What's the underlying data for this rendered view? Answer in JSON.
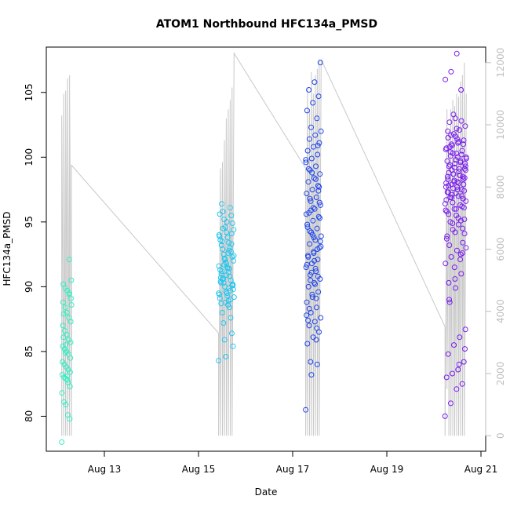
{
  "chart_data": {
    "type": "scatter",
    "title": "ATOM1 Northbound HFC134a_PMSD",
    "xlabel": "Date",
    "ylabel": "HFC134a_PMSD",
    "x_ticks": [
      "Aug 13",
      "Aug 15",
      "Aug 17",
      "Aug 19",
      "Aug 21"
    ],
    "x_range": [
      "2019-08-11T19:00",
      "2019-08-21T06:00"
    ],
    "y_ticks": [
      80,
      85,
      90,
      95,
      100,
      105
    ],
    "ylim": [
      77.3,
      108.5
    ],
    "y2_ticks": [
      0,
      2000,
      4000,
      6000,
      8000,
      10000,
      12000
    ],
    "y2lim": [
      -500,
      12500
    ],
    "grid": false,
    "colors": {
      "c1": "#2ff0c4",
      "c2": "#22c7f0",
      "c3": "#1f45ee",
      "c4": "#7a1cf0",
      "secondary_line": "#c8c8c8"
    },
    "scatter_groups": [
      {
        "start": "2019-08-12T03:00",
        "end": "2019-08-12T08:00",
        "color": "c1",
        "y": [
          78.0,
          79.8,
          80.1,
          80.9,
          81.1,
          81.8,
          82.3,
          82.6,
          82.9,
          83.0,
          83.2,
          83.4,
          83.6,
          83.8,
          84.0,
          84.2,
          84.5,
          84.8,
          85.0,
          85.2,
          85.4,
          85.7,
          85.9,
          86.3,
          86.6,
          87.0,
          87.3,
          87.6,
          88.0,
          88.4,
          88.8,
          89.1,
          89.4,
          89.7,
          89.9,
          90.2,
          90.5,
          92.1,
          83.1,
          84.9,
          86.1,
          88.6,
          89.5,
          82.8,
          85.5,
          87.9
        ]
      },
      {
        "start": "2019-08-15T12:00",
        "end": "2019-08-15T20:00",
        "color": "c2",
        "y": [
          84.3,
          84.6,
          85.4,
          85.9,
          86.4,
          87.2,
          87.6,
          88.0,
          88.4,
          88.7,
          88.9,
          89.1,
          89.3,
          89.5,
          89.6,
          89.8,
          90.0,
          90.1,
          90.3,
          90.5,
          90.6,
          90.8,
          91.0,
          91.1,
          91.3,
          91.5,
          91.6,
          91.8,
          92.0,
          92.1,
          92.3,
          92.5,
          92.7,
          92.9,
          93.0,
          93.2,
          93.4,
          93.6,
          93.8,
          94.0,
          94.2,
          94.4,
          94.6,
          94.9,
          95.2,
          95.5,
          95.8,
          96.1,
          96.4,
          89.9,
          90.4,
          91.4,
          89.4,
          90.9,
          92.4,
          88.8,
          90.2,
          91.7,
          93.3,
          94.5,
          89.7,
          91.2,
          92.8,
          90.7,
          88.6,
          93.9,
          95.0,
          89.2,
          91.9,
          90.1,
          92.2,
          94.1,
          90.6,
          89.0,
          93.5,
          91.4,
          90.3,
          92.6,
          95.6,
          89.5
        ]
      },
      {
        "start": "2019-08-17T09:00",
        "end": "2019-08-17T17:00",
        "color": "c3",
        "y": [
          80.5,
          83.2,
          84.0,
          85.6,
          86.1,
          86.5,
          87.0,
          87.3,
          87.6,
          88.0,
          88.4,
          88.8,
          89.2,
          89.6,
          90.0,
          90.3,
          90.6,
          90.9,
          91.2,
          91.5,
          91.8,
          92.1,
          92.4,
          92.7,
          93.0,
          93.3,
          93.6,
          93.9,
          94.2,
          94.5,
          94.8,
          95.1,
          95.4,
          95.7,
          96.0,
          96.3,
          96.6,
          96.9,
          97.2,
          97.5,
          97.8,
          98.1,
          98.4,
          98.7,
          99.0,
          99.3,
          99.6,
          99.9,
          100.2,
          100.5,
          100.8,
          101.1,
          101.4,
          101.7,
          102.0,
          102.3,
          103.0,
          103.6,
          104.2,
          104.7,
          105.2,
          105.8,
          107.3,
          84.2,
          85.9,
          87.8,
          89.4,
          90.8,
          92.3,
          93.8,
          95.3,
          96.8,
          98.3,
          99.8,
          91.1,
          92.9,
          94.6,
          96.1,
          97.7,
          88.3,
          90.2,
          93.1,
          95.9,
          86.8,
          91.7,
          94.0,
          97.4,
          99.1,
          92.0,
          93.5,
          90.5,
          89.1,
          95.6,
          98.8,
          100.9,
          87.4,
          92.6,
          96.5,
          94.3,
          91.4
        ]
      },
      {
        "start": "2019-08-20T09:00",
        "end": "2019-08-20T20:00",
        "color": "c4",
        "y": [
          80.0,
          81.0,
          82.1,
          82.5,
          83.0,
          83.3,
          83.6,
          84.2,
          84.8,
          85.5,
          86.1,
          86.7,
          88.8,
          89.9,
          91.0,
          91.8,
          92.3,
          92.8,
          93.4,
          93.9,
          94.4,
          94.8,
          95.2,
          95.6,
          96.0,
          96.3,
          96.6,
          96.9,
          97.2,
          97.5,
          97.7,
          97.9,
          98.1,
          98.3,
          98.5,
          98.7,
          98.9,
          99.1,
          99.3,
          99.5,
          99.7,
          99.9,
          100.1,
          100.3,
          100.5,
          100.7,
          100.9,
          101.1,
          101.3,
          101.5,
          101.8,
          102.1,
          102.4,
          102.7,
          103.0,
          105.2,
          106.0,
          106.6,
          108.0,
          94.5,
          95.8,
          96.5,
          97.0,
          97.4,
          97.8,
          98.2,
          98.6,
          99.0,
          99.4,
          99.8,
          100.2,
          100.6,
          101.0,
          101.4,
          96.8,
          97.3,
          97.6,
          98.0,
          98.4,
          98.8,
          99.2,
          99.6,
          100.0,
          100.4,
          95.5,
          96.2,
          96.7,
          97.1,
          97.5,
          97.9,
          98.3,
          98.7,
          99.1,
          99.5,
          93.2,
          94.2,
          95.1,
          96.4,
          101.7,
          102.2,
          92.6,
          93.7,
          94.9,
          95.3,
          96.1,
          97.3,
          98.1,
          98.6,
          99.3,
          100.8,
          101.6,
          102.8,
          95.9,
          96.9,
          97.7,
          98.5,
          99.7,
          100.3,
          101.2,
          94.1,
          90.3,
          91.5,
          92.1,
          93.0,
          95.0,
          96.0,
          97.0,
          98.0,
          99.0,
          100.0,
          101.0,
          102.0,
          103.3,
          84.0,
          85.2,
          89.0,
          90.6,
          92.5
        ]
      }
    ],
    "secondary_line": {
      "axis": "right",
      "points": [
        [
          "2019-08-12T03:00",
          0
        ],
        [
          "2019-08-12T03:00",
          10300
        ],
        [
          "2019-08-12T04:00",
          0
        ],
        [
          "2019-08-12T04:00",
          11000
        ],
        [
          "2019-08-12T05:00",
          0
        ],
        [
          "2019-08-12T05:00",
          11100
        ],
        [
          "2019-08-12T06:00",
          0
        ],
        [
          "2019-08-12T06:00",
          11500
        ],
        [
          "2019-08-12T07:00",
          0
        ],
        [
          "2019-08-12T07:00",
          11600
        ],
        [
          "2019-08-12T08:00",
          0
        ],
        [
          "2019-08-12T08:00",
          8700
        ],
        [
          "2019-08-15T12:00",
          3300
        ],
        [
          "2019-08-15T12:00",
          0
        ],
        [
          "2019-08-15T13:00",
          8600
        ],
        [
          "2019-08-15T13:00",
          0
        ],
        [
          "2019-08-15T14:00",
          8800
        ],
        [
          "2019-08-15T14:00",
          0
        ],
        [
          "2019-08-15T15:00",
          9500
        ],
        [
          "2019-08-15T15:00",
          0
        ],
        [
          "2019-08-15T16:00",
          10200
        ],
        [
          "2019-08-15T16:00",
          0
        ],
        [
          "2019-08-15T17:00",
          10500
        ],
        [
          "2019-08-15T17:00",
          0
        ],
        [
          "2019-08-15T18:00",
          10800
        ],
        [
          "2019-08-15T18:00",
          0
        ],
        [
          "2019-08-15T19:00",
          11200
        ],
        [
          "2019-08-15T19:00",
          0
        ],
        [
          "2019-08-15T20:00",
          12300
        ],
        [
          "2019-08-17T09:00",
          8600
        ],
        [
          "2019-08-17T09:00",
          0
        ],
        [
          "2019-08-17T10:00",
          11200
        ],
        [
          "2019-08-17T10:00",
          0
        ],
        [
          "2019-08-17T11:00",
          10500
        ],
        [
          "2019-08-17T11:00",
          0
        ],
        [
          "2019-08-17T12:00",
          11700
        ],
        [
          "2019-08-17T12:00",
          0
        ],
        [
          "2019-08-17T13:00",
          11000
        ],
        [
          "2019-08-17T13:00",
          0
        ],
        [
          "2019-08-17T14:00",
          11600
        ],
        [
          "2019-08-17T14:00",
          0
        ],
        [
          "2019-08-17T15:00",
          11800
        ],
        [
          "2019-08-17T15:00",
          0
        ],
        [
          "2019-08-17T16:00",
          12100
        ],
        [
          "2019-08-17T16:00",
          0
        ],
        [
          "2019-08-17T17:00",
          12100
        ],
        [
          "2019-08-20T09:00",
          3500
        ],
        [
          "2019-08-20T09:00",
          0
        ],
        [
          "2019-08-20T10:00",
          10500
        ],
        [
          "2019-08-20T10:00",
          1500
        ],
        [
          "2019-08-20T11:00",
          9800
        ],
        [
          "2019-08-20T11:00",
          0
        ],
        [
          "2019-08-20T12:00",
          10500
        ],
        [
          "2019-08-20T12:00",
          0
        ],
        [
          "2019-08-20T13:00",
          10800
        ],
        [
          "2019-08-20T13:00",
          0
        ],
        [
          "2019-08-20T14:00",
          10600
        ],
        [
          "2019-08-20T14:00",
          0
        ],
        [
          "2019-08-20T15:00",
          11000
        ],
        [
          "2019-08-20T15:00",
          0
        ],
        [
          "2019-08-20T16:00",
          10900
        ],
        [
          "2019-08-20T16:00",
          0
        ],
        [
          "2019-08-20T17:00",
          11400
        ],
        [
          "2019-08-20T17:00",
          0
        ],
        [
          "2019-08-20T18:00",
          11600
        ],
        [
          "2019-08-20T18:00",
          0
        ],
        [
          "2019-08-20T19:00",
          12000
        ],
        [
          "2019-08-20T19:00",
          0
        ],
        [
          "2019-08-20T20:00",
          11000
        ]
      ]
    }
  }
}
